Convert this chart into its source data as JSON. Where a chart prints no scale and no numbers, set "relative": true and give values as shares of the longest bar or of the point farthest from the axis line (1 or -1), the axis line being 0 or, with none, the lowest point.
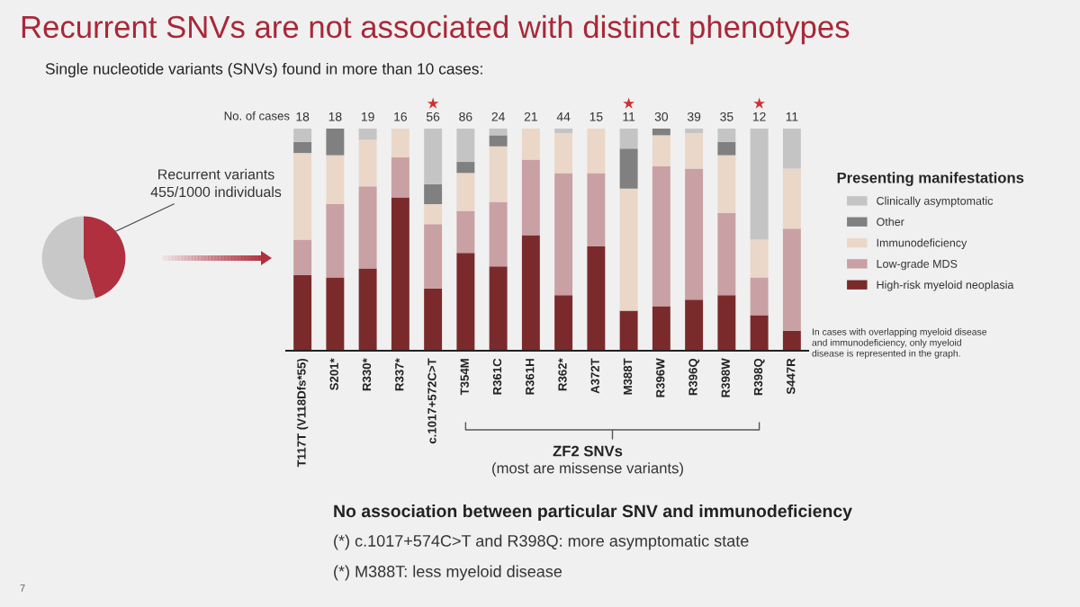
{
  "chart_data": [
    {
      "type": "pie",
      "categories": [
        null,
        null
      ],
      "values": [
        45.5,
        54.5
      ],
      "colors": [
        "#b0303f",
        "#c8c8c8"
      ],
      "annotations": [
        "Recurrent variants\n455/1000 individuals"
      ]
    },
    {
      "type": "bar",
      "title": "Recurrent SNVs are not associated with distinct phenotypes",
      "subtitle": "Single nucleotide variants (SNVs) found in more than 10 cases:",
      "categories": [
        "T117T (V118Dfs*55)",
        "S201*",
        "R330*",
        "R337*",
        "c.1017+572C>T",
        "T354M",
        "R361C",
        "R361H",
        "R362*",
        "A372T",
        "M388T",
        "R396W",
        "R396Q",
        "R398W",
        "R398Q",
        "S447R"
      ],
      "stacked": true,
      "relative": true,
      "tick_labels": "x",
      "legend": "right",
      "legend_title": "Presenting manifestations",
      "series": [
        {
          "name": "High-risk myeloid neoplasia",
          "color": "#7b2a2c",
          "values": [
            0.34,
            0.33,
            0.37,
            0.69,
            0.28,
            0.44,
            0.38,
            0.52,
            0.25,
            0.47,
            0.18,
            0.2,
            0.23,
            0.25,
            0.16,
            0.09
          ]
        },
        {
          "name": "Low-grade MDS",
          "color": "#c9a0a3",
          "values": [
            0.16,
            0.33,
            0.37,
            0.18,
            0.29,
            0.19,
            0.29,
            0.34,
            0.55,
            0.33,
            0,
            0.63,
            0.59,
            0.37,
            0.17,
            0.46
          ]
        },
        {
          "name": "Immunodeficiency",
          "color": "#ead7c8",
          "values": [
            0.39,
            0.22,
            0.21,
            0.13,
            0.09,
            0.17,
            0.25,
            0.14,
            0.18,
            0.2,
            0.55,
            0.14,
            0.16,
            0.26,
            0.17,
            0.27
          ]
        },
        {
          "name": "Other",
          "color": "#808080",
          "values": [
            0.05,
            0.12,
            0,
            0,
            0.09,
            0.05,
            0.05,
            0,
            0,
            0,
            0.18,
            0.03,
            0,
            0.06,
            0,
            0
          ]
        },
        {
          "name": "Clinically asymptomatic",
          "color": "#c4c4c4",
          "values": [
            0.06,
            0,
            0.05,
            0,
            0.25,
            0.15,
            0.03,
            0,
            0.02,
            0,
            0.09,
            0,
            0.02,
            0.06,
            0.5,
            0.18
          ]
        }
      ],
      "annotations": [
        "No. of cases",
        "18",
        "18",
        "19",
        "16",
        "56",
        "86",
        "24",
        "21",
        "44",
        "15",
        "11",
        "30",
        "39",
        "35",
        "12",
        "11",
        "ZF2 SNVs",
        "(most are missense variants)",
        "No association between particular SNV and immunodeficiency",
        "(*) c.1017+574C>T and R398Q: more asymptomatic state",
        "(*) M388T: less myeloid disease",
        "In cases with overlapping myeloid disease\nand immunodeficiency, only myeloid\ndisease is represented in the graph.",
        "7",
        "★",
        "★",
        "★"
      ]
    }
  ]
}
